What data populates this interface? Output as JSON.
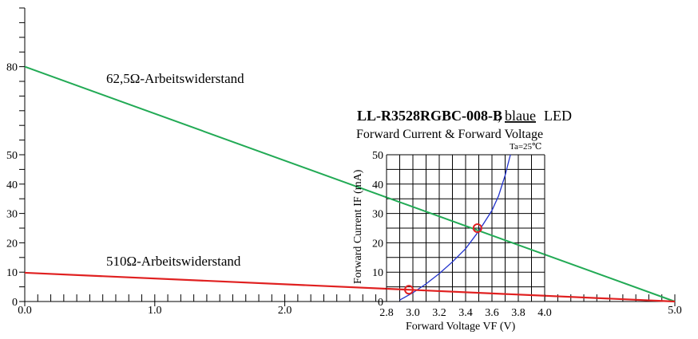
{
  "chart_data": [
    {
      "type": "line",
      "x_axis": {
        "range": [
          0.0,
          5.0
        ],
        "tick_labels": [
          "0.0",
          "1.0",
          "2.0",
          "5.0"
        ],
        "major_ticks": [
          0.0,
          1.0,
          2.0,
          5.0
        ],
        "minor_tick_step": 0.1
      },
      "y_axis": {
        "range": [
          0,
          100
        ],
        "tick_labels": [
          "0",
          "10",
          "20",
          "30",
          "40",
          "50",
          "80"
        ],
        "labeled_ticks": [
          0,
          10,
          20,
          30,
          40,
          50,
          80
        ],
        "minor_tick_step": 5
      },
      "series": [
        {
          "name": "62,5Ω-Arbeitswiderstand",
          "color": "#22aa55",
          "x": [
            0.0,
            5.0
          ],
          "y": [
            80,
            0
          ]
        },
        {
          "name": "510Ω-Arbeitswiderstand",
          "color": "#e02020",
          "x": [
            0.0,
            5.0
          ],
          "y": [
            9.8,
            0
          ]
        }
      ]
    },
    {
      "type": "line",
      "title": "LL-R3528RGBC-008-B",
      "title_suffix": ", ",
      "title_underlined": "blaue",
      "title_tail": " LED",
      "subtitle": "Forward Current & Forward Voltage",
      "note": "Ta=25℃",
      "xlabel": "Forward Voltage  VF (V)",
      "ylabel": "Forward Current IF (mA)",
      "x_tick_labels": [
        "2.8",
        "3.0",
        "3.2",
        "3.4",
        "3.6",
        "3.8",
        "4.0"
      ],
      "y_tick_labels": [
        "0",
        "10",
        "20",
        "30",
        "40",
        "50"
      ],
      "xlim": [
        2.8,
        4.0
      ],
      "ylim": [
        0,
        50
      ],
      "grid": true,
      "series": [
        {
          "color": "#2233cc",
          "x": [
            2.9,
            3.0,
            3.1,
            3.2,
            3.3,
            3.4,
            3.5,
            3.6,
            3.65,
            3.7,
            3.74
          ],
          "y": [
            0.5,
            3,
            6,
            9.5,
            13.5,
            18,
            24,
            31,
            36,
            43,
            50
          ]
        }
      ],
      "operating_points": [
        {
          "x": 2.97,
          "y": 4
        },
        {
          "x": 3.49,
          "y": 25
        }
      ],
      "marker_color": "#e02020"
    }
  ]
}
